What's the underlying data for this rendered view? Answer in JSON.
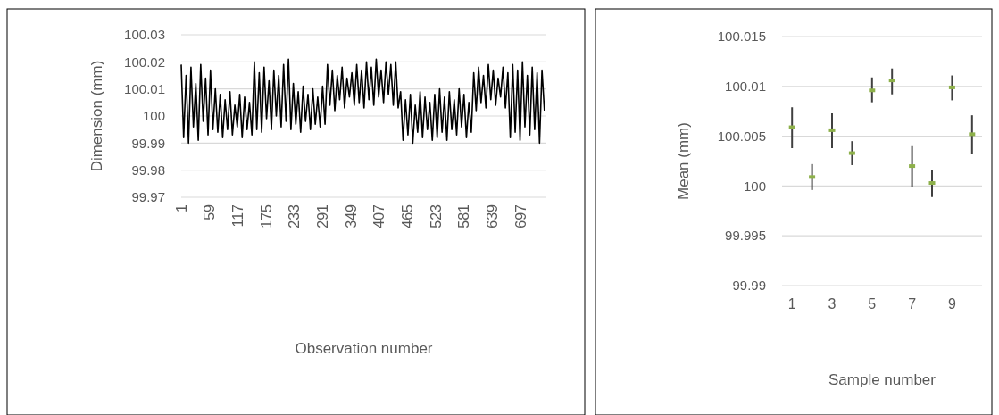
{
  "chart_data": [
    {
      "type": "line",
      "xlabel": "Observation number",
      "ylabel": "Dimension (mm)",
      "color": "#000000",
      "grid": "y",
      "x": [
        1,
        6,
        11,
        16,
        21,
        26,
        31,
        36,
        41,
        46,
        51,
        56,
        61,
        66,
        71,
        76,
        81,
        86,
        91,
        96,
        101,
        106,
        111,
        116,
        121,
        126,
        131,
        136,
        141,
        146,
        151,
        156,
        161,
        166,
        171,
        176,
        181,
        186,
        191,
        196,
        201,
        206,
        211,
        216,
        221,
        226,
        231,
        236,
        241,
        246,
        251,
        256,
        261,
        266,
        271,
        276,
        281,
        286,
        291,
        296,
        301,
        306,
        311,
        316,
        321,
        326,
        331,
        336,
        341,
        346,
        351,
        356,
        361,
        366,
        371,
        376,
        381,
        386,
        391,
        396,
        401,
        406,
        411,
        416,
        421,
        426,
        431,
        436,
        441,
        446,
        451,
        456,
        461,
        466,
        471,
        476,
        481,
        486,
        491,
        496,
        501,
        506,
        511,
        516,
        521,
        526,
        531,
        536,
        541,
        546,
        551,
        556,
        561,
        566,
        571,
        576,
        581,
        586,
        591,
        596,
        601,
        606,
        611,
        616,
        621,
        626,
        631,
        636,
        641,
        646,
        651,
        656,
        661,
        666,
        671,
        676,
        681,
        686,
        691,
        696,
        701,
        706,
        711,
        716,
        721,
        726,
        731,
        736,
        741,
        746
      ],
      "values": [
        100.019,
        99.992,
        100.015,
        99.99,
        100.018,
        99.996,
        100.012,
        99.991,
        100.019,
        99.998,
        100.014,
        99.993,
        100.017,
        99.995,
        100.01,
        99.994,
        100.008,
        99.992,
        100.006,
        99.995,
        100.009,
        99.993,
        100.004,
        99.996,
        100.008,
        99.992,
        100.007,
        99.995,
        100.005,
        99.993,
        100.02,
        99.995,
        100.016,
        99.994,
        100.018,
        99.999,
        100.013,
        99.995,
        100.017,
        100.0,
        100.015,
        99.996,
        100.019,
        99.998,
        100.021,
        99.995,
        100.012,
        99.997,
        100.009,
        99.994,
        100.011,
        99.998,
        100.008,
        99.995,
        100.01,
        99.997,
        100.007,
        99.996,
        100.011,
        99.997,
        100.019,
        100.004,
        100.017,
        100.002,
        100.015,
        100.006,
        100.018,
        100.003,
        100.014,
        100.007,
        100.016,
        100.004,
        100.019,
        100.005,
        100.017,
        100.003,
        100.02,
        100.006,
        100.018,
        100.004,
        100.021,
        100.007,
        100.017,
        100.005,
        100.02,
        100.008,
        100.019,
        100.004,
        100.02,
        100.003,
        100.009,
        99.991,
        100.006,
        99.993,
        100.008,
        99.99,
        100.004,
        99.994,
        100.009,
        99.992,
        100.007,
        99.995,
        100.005,
        99.991,
        100.008,
        99.992,
        100.01,
        99.994,
        100.007,
        99.991,
        100.009,
        99.995,
        100.006,
        99.993,
        100.01,
        99.996,
        100.008,
        99.992,
        100.005,
        99.994,
        100.016,
        100.002,
        100.018,
        100.005,
        100.015,
        100.003,
        100.019,
        100.006,
        100.017,
        100.004,
        100.014,
        100.007,
        100.018,
        100.003,
        100.016,
        99.992,
        100.019,
        99.994,
        100.017,
        99.991,
        100.02,
        99.996,
        100.015,
        99.993,
        100.018,
        99.995,
        100.016,
        99.99,
        100.017,
        100.002
      ],
      "xlim": [
        1,
        750
      ],
      "xticks": [
        1,
        59,
        117,
        175,
        233,
        291,
        349,
        407,
        465,
        523,
        581,
        639,
        697
      ],
      "ylim": [
        99.97,
        100.03
      ],
      "yticks": [
        99.97,
        99.98,
        99.99,
        {
          "value": 100,
          "label": "100"
        },
        100.01,
        100.02,
        100.03
      ]
    },
    {
      "type": "scatter",
      "xlabel": "Sample number",
      "ylabel": "Mean (mm)",
      "color": "#8db04a",
      "marker": "square",
      "grid": "y",
      "categories": [
        "1",
        null,
        "3",
        null,
        "5",
        null,
        "7",
        null,
        "9",
        null
      ],
      "values": [
        100.0059,
        100.0009,
        100.0056,
        100.0033,
        100.0096,
        100.0106,
        100.002,
        100.0003,
        100.0099,
        100.0052
      ],
      "errors": [
        [
          100.0038,
          100.0079
        ],
        [
          99.9996,
          100.0022
        ],
        [
          100.0038,
          100.0073
        ],
        [
          100.0021,
          100.0045
        ],
        [
          100.0084,
          100.0109
        ],
        [
          100.0092,
          100.0118
        ],
        [
          99.9999,
          100.004
        ],
        [
          99.9989,
          100.0016
        ],
        [
          100.0086,
          100.0111
        ],
        [
          100.0032,
          100.0071
        ]
      ],
      "ylim": [
        99.99,
        100.015
      ],
      "yticks": [
        99.99,
        99.995,
        {
          "value": 100,
          "label": "100"
        },
        100.005,
        100.01,
        100.015
      ]
    }
  ]
}
